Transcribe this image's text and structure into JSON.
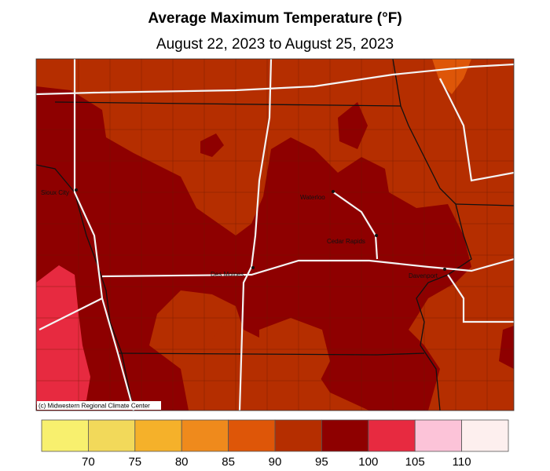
{
  "header": {
    "title": "Average Maximum Temperature (°F)",
    "subtitle": "August 22, 2023 to August 25, 2023"
  },
  "cities": [
    {
      "label": "Sioux City"
    },
    {
      "label": "Waterloo"
    },
    {
      "label": "Cedar Rapids"
    },
    {
      "label": "Des Moines"
    },
    {
      "label": "Davenport"
    }
  ],
  "credit": "(c) Midwestern Regional Climate Center",
  "legend": {
    "colors": [
      "#f8f06e",
      "#f2d95a",
      "#f5b12a",
      "#ef8a1c",
      "#de5608",
      "#b52e00",
      "#8e0000",
      "#e72a40",
      "#fcc3d8",
      "#fdefee"
    ],
    "ticks": [
      70,
      75,
      80,
      85,
      90,
      95,
      100,
      105,
      110
    ]
  }
}
